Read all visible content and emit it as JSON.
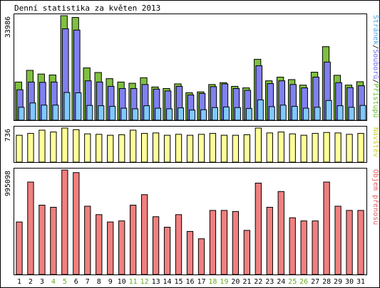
{
  "chart_data": {
    "type": "bar",
    "title": "Denní statistika za květen 2013",
    "days": [
      1,
      2,
      3,
      4,
      5,
      6,
      7,
      8,
      9,
      10,
      11,
      12,
      13,
      14,
      15,
      16,
      17,
      18,
      19,
      20,
      21,
      22,
      23,
      24,
      25,
      26,
      27,
      28,
      29,
      30,
      31
    ],
    "weekend_days": [
      4,
      5,
      11,
      12,
      18,
      19,
      25,
      26
    ],
    "panels": [
      {
        "id": "hits",
        "ymax_label": "33986",
        "ymax": 33986,
        "legend": [
          {
            "text": "Stránek",
            "color": "#4da3e6"
          },
          {
            "text": "/",
            "color": "#000000"
          },
          {
            "text": "Souborů",
            "color": "#6a6ae6"
          },
          {
            "text": "/",
            "color": "#000000"
          },
          {
            "text": "Přístupů",
            "color": "#66bb33"
          }
        ],
        "series": [
          {
            "name": "Přístupů",
            "color": "#80c040",
            "values": [
              12400,
              16200,
              15000,
              14700,
              33986,
              33400,
              17000,
              15500,
              13500,
              12400,
              12000,
              13800,
              10800,
              10300,
              11800,
              8900,
              9200,
              11600,
              12200,
              11000,
              10500,
              19800,
              12800,
              14000,
              13200,
              11400,
              15600,
              23900,
              14600,
              11400,
              12500
            ]
          },
          {
            "name": "Souborů",
            "color": "#8080f0",
            "values": [
              9900,
              12400,
              12300,
              12400,
              29700,
              29300,
              12800,
              12400,
              11000,
              10300,
              10300,
              11600,
              10100,
              9500,
              11000,
              8200,
              8700,
              10900,
              11800,
              10300,
              9700,
              17700,
              11900,
              12800,
              11600,
              10500,
              14000,
              18900,
              12200,
              10600,
              11200
            ]
          },
          {
            "name": "Stránek",
            "color": "#80c8ff",
            "values": [
              4200,
              5600,
              4900,
              4900,
              9000,
              8900,
              4800,
              4700,
              4500,
              3900,
              3700,
              4700,
              3900,
              3700,
              4000,
              3300,
              3400,
              4100,
              4300,
              4100,
              3800,
              6600,
              4400,
              4900,
              4500,
              3900,
              4200,
              6400,
              4700,
              4200,
              4800
            ]
          }
        ]
      },
      {
        "id": "visits",
        "ymax_label": "736",
        "ymax": 736,
        "legend": [
          {
            "text": "Návštěv",
            "color": "#cccc33"
          }
        ],
        "series": [
          {
            "name": "Návštěv",
            "color": "#ffff99",
            "values": [
              580,
              620,
              690,
              650,
              736,
              700,
              610,
              600,
              580,
              590,
              690,
              620,
              630,
              580,
              600,
              580,
              600,
              620,
              580,
              580,
              590,
              736,
              630,
              650,
              610,
              580,
              620,
              640,
              630,
              600,
              620
            ]
          }
        ]
      },
      {
        "id": "transfer",
        "ymax_label": "995098",
        "ymax": 995098,
        "legend": [
          {
            "text": "Objem přenosu",
            "color": "#e06060"
          }
        ],
        "series": [
          {
            "name": "Objem přenosu",
            "color": "#f08080",
            "values": [
              500000,
              880000,
              660000,
              640000,
              995098,
              970000,
              650000,
              570000,
              500000,
              510000,
              660000,
              760000,
              550000,
              450000,
              570000,
              410000,
              340000,
              610000,
              610000,
              600000,
              420000,
              870000,
              640000,
              790000,
              540000,
              510000,
              510000,
              880000,
              650000,
              610000,
              610000
            ]
          }
        ]
      }
    ]
  }
}
